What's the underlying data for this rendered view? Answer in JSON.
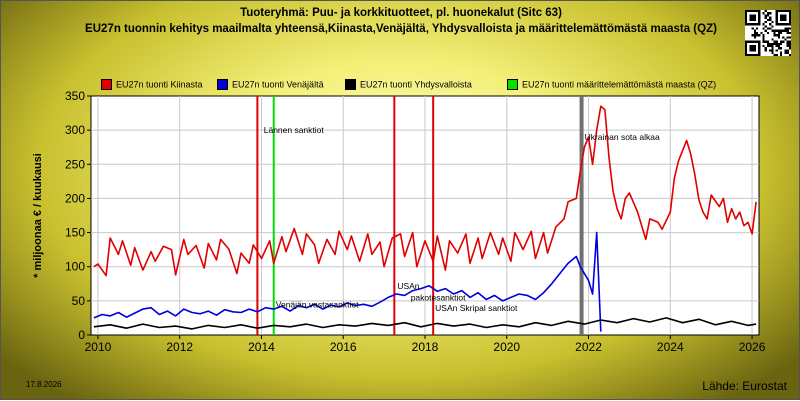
{
  "header": {
    "title_line1": "Tuoteryhmä: Puu- ja korkkituotteet, pl. huonekalut (Sitc 63)",
    "title_line2": "EU27n tuonnin kehitys maailmalta yhteensä,Kiinasta,Venäjältä, Yhdysvalloista ja määrittelemättömästä maasta (QZ)"
  },
  "footer": {
    "date": "17.8.2026",
    "source": "Lähde: Eurostat"
  },
  "chart_data": {
    "type": "line",
    "ylabel": "* miljoonaa € / kuukausi",
    "ylim": [
      0,
      350
    ],
    "yticks": [
      0,
      50,
      100,
      150,
      200,
      250,
      300,
      350
    ],
    "xlim": [
      2009.83,
      2026.17
    ],
    "xticks": [
      2010,
      2012,
      2014,
      2016,
      2018,
      2020,
      2022,
      2024,
      2026
    ],
    "grid": true,
    "legend_position": "top",
    "series": [
      {
        "name": "EU27n tuonti Kiinasta",
        "color": "#e00000",
        "x": [
          2009.9,
          2010.0,
          2010.2,
          2010.3,
          2010.5,
          2010.6,
          2010.8,
          2010.9,
          2011.1,
          2011.3,
          2011.4,
          2011.6,
          2011.8,
          2011.9,
          2012.1,
          2012.2,
          2012.4,
          2012.6,
          2012.7,
          2012.9,
          2013.0,
          2013.2,
          2013.4,
          2013.5,
          2013.7,
          2013.8,
          2014.0,
          2014.2,
          2014.3,
          2014.5,
          2014.6,
          2014.8,
          2015.0,
          2015.1,
          2015.3,
          2015.4,
          2015.6,
          2015.8,
          2015.9,
          2016.1,
          2016.2,
          2016.4,
          2016.6,
          2016.7,
          2016.9,
          2017.0,
          2017.2,
          2017.4,
          2017.5,
          2017.7,
          2017.8,
          2018.0,
          2018.2,
          2018.3,
          2018.5,
          2018.6,
          2018.8,
          2019.0,
          2019.1,
          2019.3,
          2019.4,
          2019.6,
          2019.8,
          2019.9,
          2020.1,
          2020.2,
          2020.4,
          2020.6,
          2020.7,
          2020.9,
          2021.0,
          2021.2,
          2021.4,
          2021.5,
          2021.7,
          2021.8,
          2021.9,
          2022.0,
          2022.1,
          2022.2,
          2022.3,
          2022.4,
          2022.5,
          2022.6,
          2022.7,
          2022.8,
          2022.9,
          2023.0,
          2023.2,
          2023.4,
          2023.5,
          2023.7,
          2023.8,
          2024.0,
          2024.1,
          2024.2,
          2024.3,
          2024.4,
          2024.5,
          2024.6,
          2024.7,
          2024.8,
          2024.9,
          2025.0,
          2025.2,
          2025.3,
          2025.4,
          2025.5,
          2025.6,
          2025.7,
          2025.8,
          2025.9,
          2026.0,
          2026.1
        ],
        "values": [
          100,
          104,
          87,
          142,
          118,
          138,
          102,
          128,
          95,
          122,
          108,
          130,
          125,
          88,
          140,
          118,
          131,
          98,
          134,
          110,
          140,
          126,
          90,
          120,
          105,
          132,
          112,
          138,
          105,
          144,
          122,
          156,
          118,
          148,
          132,
          105,
          140,
          118,
          152,
          125,
          145,
          108,
          148,
          118,
          136,
          100,
          142,
          148,
          115,
          150,
          100,
          138,
          108,
          145,
          95,
          138,
          120,
          148,
          105,
          142,
          112,
          150,
          118,
          142,
          108,
          150,
          125,
          152,
          112,
          150,
          120,
          158,
          170,
          195,
          200,
          240,
          275,
          290,
          250,
          300,
          335,
          330,
          260,
          210,
          185,
          170,
          200,
          208,
          180,
          140,
          170,
          165,
          155,
          180,
          230,
          255,
          270,
          285,
          265,
          235,
          198,
          180,
          170,
          205,
          188,
          200,
          165,
          185,
          170,
          180,
          160,
          165,
          148,
          195
        ]
      },
      {
        "name": "EU27n tuonti Venäjältä",
        "color": "#0000dd",
        "x": [
          2009.9,
          2010.1,
          2010.3,
          2010.5,
          2010.7,
          2010.9,
          2011.1,
          2011.3,
          2011.5,
          2011.7,
          2011.9,
          2012.1,
          2012.3,
          2012.5,
          2012.7,
          2012.9,
          2013.1,
          2013.3,
          2013.5,
          2013.7,
          2013.9,
          2014.1,
          2014.3,
          2014.5,
          2014.7,
          2014.9,
          2015.1,
          2015.3,
          2015.5,
          2015.7,
          2015.9,
          2016.1,
          2016.3,
          2016.5,
          2016.7,
          2016.9,
          2017.1,
          2017.3,
          2017.5,
          2017.7,
          2017.9,
          2018.1,
          2018.3,
          2018.5,
          2018.7,
          2018.9,
          2019.1,
          2019.3,
          2019.5,
          2019.7,
          2019.9,
          2020.1,
          2020.3,
          2020.5,
          2020.7,
          2020.9,
          2021.1,
          2021.3,
          2021.5,
          2021.7,
          2021.8,
          2022.0,
          2022.1,
          2022.2,
          2022.25,
          2022.3
        ],
        "values": [
          25,
          30,
          28,
          33,
          26,
          32,
          38,
          40,
          30,
          35,
          28,
          38,
          33,
          31,
          35,
          29,
          37,
          34,
          33,
          38,
          34,
          40,
          38,
          42,
          35,
          43,
          40,
          45,
          38,
          44,
          41,
          47,
          43,
          45,
          42,
          48,
          55,
          60,
          58,
          65,
          68,
          72,
          64,
          68,
          60,
          65,
          55,
          62,
          52,
          58,
          50,
          55,
          60,
          58,
          52,
          62,
          75,
          90,
          105,
          115,
          100,
          80,
          60,
          150,
          80,
          5
        ]
      },
      {
        "name": "EU27n tuonti Yhdysvalloista",
        "color": "#000000",
        "x": [
          2009.9,
          2010.3,
          2010.7,
          2011.1,
          2011.5,
          2011.9,
          2012.3,
          2012.7,
          2013.1,
          2013.5,
          2013.9,
          2014.3,
          2014.7,
          2015.1,
          2015.5,
          2015.9,
          2016.3,
          2016.7,
          2017.1,
          2017.5,
          2017.9,
          2018.3,
          2018.7,
          2019.1,
          2019.5,
          2019.9,
          2020.3,
          2020.7,
          2021.1,
          2021.5,
          2021.9,
          2022.3,
          2022.7,
          2023.1,
          2023.5,
          2023.9,
          2024.3,
          2024.7,
          2025.1,
          2025.5,
          2025.9,
          2026.1
        ],
        "values": [
          12,
          15,
          10,
          16,
          11,
          13,
          9,
          14,
          11,
          15,
          10,
          14,
          12,
          16,
          11,
          15,
          13,
          17,
          14,
          18,
          12,
          17,
          13,
          16,
          11,
          15,
          12,
          18,
          14,
          20,
          16,
          22,
          18,
          24,
          19,
          25,
          18,
          23,
          15,
          20,
          14,
          16
        ]
      },
      {
        "name": "EU27n tuonti määrittelemättömästä maasta (QZ)",
        "color": "#00e000",
        "x": [],
        "values": []
      }
    ],
    "events": [
      {
        "x": 2013.9,
        "color": "#e00000",
        "label": ""
      },
      {
        "x": 2014.3,
        "color": "#00e000",
        "label": "Lännen sanktiot"
      },
      {
        "x": 2017.25,
        "color": "#e00000",
        "label": "USAn"
      },
      {
        "x": 2018.2,
        "color": "#e00000",
        "label": "USAn Skripal sanktiot"
      },
      {
        "x": 2021.83,
        "color": "#707070",
        "label": "Ukrainan sota alkaa"
      }
    ],
    "annotations": [
      {
        "x": 2014.35,
        "y": 45,
        "text": "Venäjän vastasanktiot"
      },
      {
        "x": 2017.65,
        "y": 55,
        "text": "pakotesanktiot"
      }
    ]
  }
}
